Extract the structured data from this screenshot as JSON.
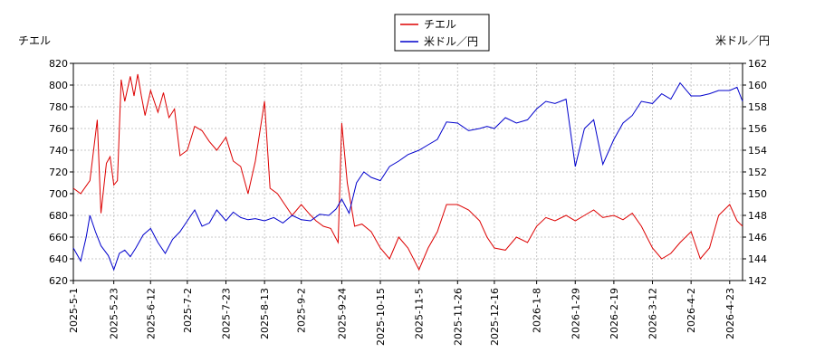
{
  "chart_data": {
    "type": "line",
    "title": "",
    "legend": {
      "placement": "top-center",
      "entries": [
        {
          "label": "チエル",
          "color": "#dd0000"
        },
        {
          "label": "米ドル／円",
          "color": "#0000cc"
        }
      ]
    },
    "y_left": {
      "label": "チエル",
      "ylim": [
        620,
        820
      ],
      "ticks": [
        "620",
        "640",
        "660",
        "680",
        "700",
        "720",
        "740",
        "760",
        "780",
        "800",
        "820"
      ]
    },
    "y_right": {
      "label": "米ドル／円",
      "ylim": [
        142,
        162
      ],
      "ticks": [
        "142",
        "144",
        "146",
        "148",
        "150",
        "152",
        "154",
        "156",
        "158",
        "160",
        "162"
      ]
    },
    "x_ticks": [
      "2025-5-1",
      "2025-5-23",
      "2025-6-12",
      "2025-7-2",
      "2025-7-23",
      "2025-8-13",
      "2025-9-2",
      "2025-9-24",
      "2025-10-15",
      "2025-11-5",
      "2025-11-26",
      "2025-12-16",
      "2026-1-8",
      "2026-1-29",
      "2026-2-19",
      "2026-3-12",
      "2026-4-2",
      "2026-4-23"
    ],
    "x_range": [
      "2025-5-1",
      "2026-4-30"
    ],
    "grid": true,
    "series": [
      {
        "name": "チエル",
        "axis": "left",
        "color": "#dd0000",
        "x": [
          "2025-5-1",
          "2025-5-5",
          "2025-5-10",
          "2025-5-14",
          "2025-5-16",
          "2025-5-19",
          "2025-5-21",
          "2025-5-23",
          "2025-5-25",
          "2025-5-27",
          "2025-5-29",
          "2025-6-1",
          "2025-6-3",
          "2025-6-5",
          "2025-6-7",
          "2025-6-9",
          "2025-6-12",
          "2025-6-16",
          "2025-6-19",
          "2025-6-22",
          "2025-6-25",
          "2025-6-28",
          "2025-7-2",
          "2025-7-6",
          "2025-7-10",
          "2025-7-14",
          "2025-7-18",
          "2025-7-23",
          "2025-7-27",
          "2025-7-31",
          "2025-8-4",
          "2025-8-8",
          "2025-8-13",
          "2025-8-16",
          "2025-8-20",
          "2025-8-24",
          "2025-8-28",
          "2025-9-2",
          "2025-9-6",
          "2025-9-10",
          "2025-9-14",
          "2025-9-18",
          "2025-9-22",
          "2025-9-24",
          "2025-9-27",
          "2025-10-1",
          "2025-10-5",
          "2025-10-10",
          "2025-10-15",
          "2025-10-20",
          "2025-10-25",
          "2025-10-30",
          "2025-11-5",
          "2025-11-10",
          "2025-11-15",
          "2025-11-20",
          "2025-11-26",
          "2025-12-2",
          "2025-12-8",
          "2025-12-12",
          "2025-12-16",
          "2025-12-22",
          "2025-12-28",
          "2026-1-3",
          "2026-1-8",
          "2026-1-13",
          "2026-1-18",
          "2026-1-24",
          "2026-1-29",
          "2026-2-3",
          "2026-2-8",
          "2026-2-13",
          "2026-2-19",
          "2026-2-24",
          "2026-3-1",
          "2026-3-6",
          "2026-3-12",
          "2026-3-17",
          "2026-3-22",
          "2026-3-27",
          "2026-4-2",
          "2026-4-7",
          "2026-4-12",
          "2026-4-17",
          "2026-4-23",
          "2026-4-27",
          "2026-4-30"
        ],
        "y": [
          705,
          700,
          712,
          768,
          682,
          728,
          734,
          708,
          712,
          805,
          785,
          808,
          790,
          810,
          790,
          772,
          795,
          775,
          793,
          770,
          778,
          735,
          740,
          762,
          758,
          748,
          740,
          752,
          730,
          725,
          700,
          730,
          785,
          705,
          700,
          690,
          680,
          690,
          682,
          675,
          670,
          668,
          655,
          765,
          710,
          670,
          672,
          665,
          650,
          640,
          660,
          650,
          630,
          650,
          665,
          690,
          690,
          685,
          675,
          660,
          650,
          648,
          660,
          655,
          670,
          678,
          675,
          680,
          675,
          680,
          685,
          678,
          680,
          676,
          682,
          670,
          650,
          640,
          645,
          655,
          665,
          640,
          650,
          680,
          690,
          675,
          670
        ]
      },
      {
        "name": "米ドル／円",
        "axis": "right",
        "color": "#0000cc",
        "x": [
          "2025-5-1",
          "2025-5-5",
          "2025-5-8",
          "2025-5-10",
          "2025-5-13",
          "2025-5-16",
          "2025-5-20",
          "2025-5-23",
          "2025-5-26",
          "2025-5-29",
          "2025-6-1",
          "2025-6-4",
          "2025-6-8",
          "2025-6-12",
          "2025-6-16",
          "2025-6-20",
          "2025-6-24",
          "2025-6-28",
          "2025-7-2",
          "2025-7-6",
          "2025-7-10",
          "2025-7-14",
          "2025-7-18",
          "2025-7-23",
          "2025-7-27",
          "2025-7-31",
          "2025-8-4",
          "2025-8-8",
          "2025-8-13",
          "2025-8-18",
          "2025-8-23",
          "2025-8-28",
          "2025-9-2",
          "2025-9-7",
          "2025-9-12",
          "2025-9-17",
          "2025-9-21",
          "2025-9-24",
          "2025-9-28",
          "2025-10-2",
          "2025-10-6",
          "2025-10-10",
          "2025-10-15",
          "2025-10-20",
          "2025-10-25",
          "2025-10-30",
          "2025-11-5",
          "2025-11-10",
          "2025-11-15",
          "2025-11-20",
          "2025-11-26",
          "2025-12-2",
          "2025-12-8",
          "2025-12-12",
          "2025-12-16",
          "2025-12-22",
          "2025-12-28",
          "2026-1-3",
          "2026-1-8",
          "2026-1-13",
          "2026-1-18",
          "2026-1-24",
          "2026-1-29",
          "2026-2-3",
          "2026-2-8",
          "2026-2-13",
          "2026-2-19",
          "2026-2-24",
          "2026-3-1",
          "2026-3-6",
          "2026-3-12",
          "2026-3-17",
          "2026-3-22",
          "2026-3-27",
          "2026-4-2",
          "2026-4-7",
          "2026-4-12",
          "2026-4-17",
          "2026-4-23",
          "2026-4-27",
          "2026-4-30"
        ],
        "y": [
          145.0,
          143.8,
          146.0,
          148.0,
          146.5,
          145.2,
          144.3,
          143.0,
          144.5,
          144.8,
          144.2,
          145.0,
          146.2,
          146.8,
          145.5,
          144.5,
          145.8,
          146.5,
          147.5,
          148.5,
          147.0,
          147.3,
          148.5,
          147.5,
          148.3,
          147.8,
          147.6,
          147.7,
          147.5,
          147.8,
          147.3,
          148.0,
          147.6,
          147.5,
          148.1,
          148.0,
          148.6,
          149.5,
          148.2,
          151.0,
          152.0,
          151.5,
          151.2,
          152.5,
          153.0,
          153.6,
          154.0,
          154.5,
          155.0,
          156.6,
          156.5,
          155.8,
          156.0,
          156.2,
          156.0,
          157.0,
          156.5,
          156.8,
          157.8,
          158.5,
          158.3,
          158.7,
          152.5,
          156.0,
          156.8,
          152.7,
          155.0,
          156.5,
          157.2,
          158.5,
          158.3,
          159.2,
          158.7,
          160.2,
          159.0,
          159.0,
          159.2,
          159.5,
          159.5,
          159.8,
          158.5
        ]
      }
    ]
  }
}
